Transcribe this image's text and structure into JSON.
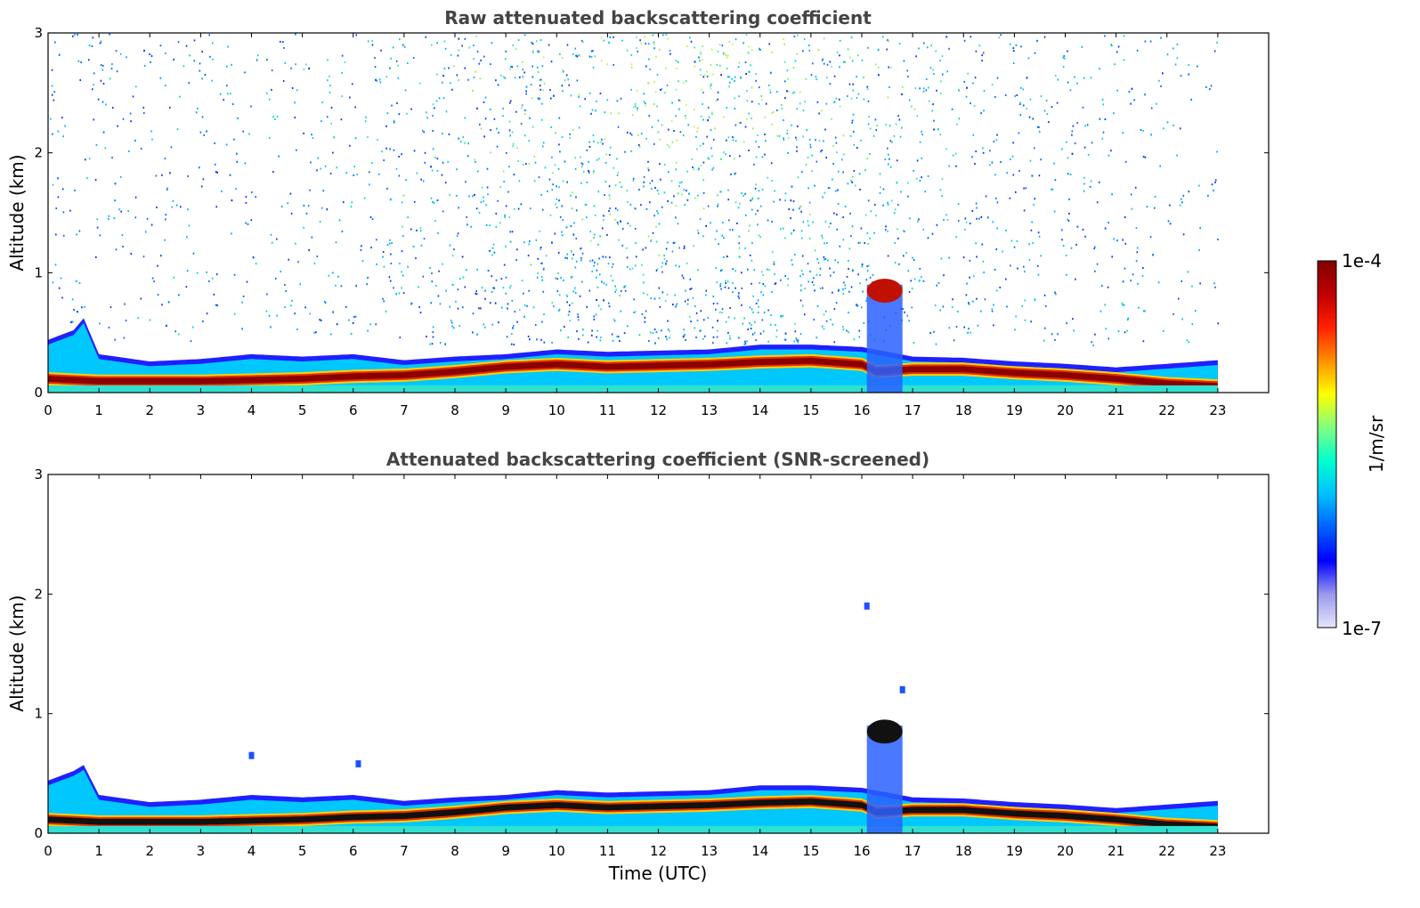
{
  "chart_data": [
    {
      "type": "heatmap",
      "title": "Raw attenuated backscattering coefficient",
      "xlabel": "",
      "ylabel": "Altitude (km)",
      "xlim": [
        0,
        24
      ],
      "ylim": [
        0,
        3
      ],
      "xticks": [
        "0",
        "1",
        "2",
        "3",
        "4",
        "5",
        "6",
        "7",
        "8",
        "9",
        "10",
        "11",
        "12",
        "13",
        "14",
        "15",
        "16",
        "17",
        "18",
        "19",
        "20",
        "21",
        "22",
        "23"
      ],
      "yticks": [
        "0",
        "1",
        "2",
        "3"
      ],
      "data_extent_hours": [
        0,
        23
      ],
      "layers": {
        "boundary_layer_top_km": [
          [
            0,
            0.42
          ],
          [
            0.5,
            0.5
          ],
          [
            0.7,
            0.6
          ],
          [
            1,
            0.3
          ],
          [
            2,
            0.24
          ],
          [
            3,
            0.26
          ],
          [
            4,
            0.3
          ],
          [
            5,
            0.28
          ],
          [
            6,
            0.3
          ],
          [
            7,
            0.25
          ],
          [
            8,
            0.28
          ],
          [
            9,
            0.3
          ],
          [
            10,
            0.34
          ],
          [
            11,
            0.32
          ],
          [
            12,
            0.33
          ],
          [
            13,
            0.34
          ],
          [
            14,
            0.38
          ],
          [
            15,
            0.38
          ],
          [
            16,
            0.36
          ],
          [
            17,
            0.28
          ],
          [
            18,
            0.27
          ],
          [
            19,
            0.24
          ],
          [
            20,
            0.22
          ],
          [
            21,
            0.19
          ],
          [
            22,
            0.22
          ],
          [
            23,
            0.25
          ]
        ],
        "dense_layer_km": [
          [
            0,
            0.12
          ],
          [
            1,
            0.1
          ],
          [
            2,
            0.1
          ],
          [
            3,
            0.1
          ],
          [
            4,
            0.11
          ],
          [
            5,
            0.12
          ],
          [
            6,
            0.14
          ],
          [
            7,
            0.15
          ],
          [
            8,
            0.18
          ],
          [
            9,
            0.22
          ],
          [
            10,
            0.24
          ],
          [
            11,
            0.22
          ],
          [
            12,
            0.23
          ],
          [
            13,
            0.24
          ],
          [
            14,
            0.26
          ],
          [
            15,
            0.27
          ],
          [
            16,
            0.24
          ],
          [
            16.3,
            0.18
          ],
          [
            17,
            0.2
          ],
          [
            18,
            0.2
          ],
          [
            19,
            0.17
          ],
          [
            20,
            0.15
          ],
          [
            21,
            0.12
          ],
          [
            22,
            0.08
          ],
          [
            23,
            0.06
          ]
        ],
        "cloud_event": {
          "time_h": [
            16.1,
            16.8
          ],
          "altitude_km": [
            0.8,
            0.9
          ]
        },
        "noise_region": {
          "time_h": [
            0,
            23
          ],
          "altitude_km": [
            0.4,
            3.0
          ]
        }
      }
    },
    {
      "type": "heatmap",
      "title": "Attenuated backscattering coefficient (SNR-screened)",
      "xlabel": "Time (UTC)",
      "ylabel": "Altitude (km)",
      "xlim": [
        0,
        24
      ],
      "ylim": [
        0,
        3
      ],
      "xticks": [
        "0",
        "1",
        "2",
        "3",
        "4",
        "5",
        "6",
        "7",
        "8",
        "9",
        "10",
        "11",
        "12",
        "13",
        "14",
        "15",
        "16",
        "17",
        "18",
        "19",
        "20",
        "21",
        "22",
        "23"
      ],
      "yticks": [
        "0",
        "1",
        "2",
        "3"
      ],
      "data_extent_hours": [
        0,
        23
      ],
      "layers": {
        "boundary_layer_top_km": [
          [
            0,
            0.42
          ],
          [
            0.5,
            0.5
          ],
          [
            0.7,
            0.55
          ],
          [
            1,
            0.3
          ],
          [
            2,
            0.24
          ],
          [
            3,
            0.26
          ],
          [
            4,
            0.3
          ],
          [
            5,
            0.28
          ],
          [
            6,
            0.3
          ],
          [
            7,
            0.25
          ],
          [
            8,
            0.28
          ],
          [
            9,
            0.3
          ],
          [
            10,
            0.34
          ],
          [
            11,
            0.32
          ],
          [
            12,
            0.33
          ],
          [
            13,
            0.34
          ],
          [
            14,
            0.38
          ],
          [
            15,
            0.38
          ],
          [
            16,
            0.36
          ],
          [
            17,
            0.28
          ],
          [
            18,
            0.27
          ],
          [
            19,
            0.24
          ],
          [
            20,
            0.22
          ],
          [
            21,
            0.19
          ],
          [
            22,
            0.22
          ],
          [
            23,
            0.25
          ]
        ],
        "dense_layer_km": [
          [
            0,
            0.12
          ],
          [
            1,
            0.1
          ],
          [
            2,
            0.1
          ],
          [
            3,
            0.1
          ],
          [
            4,
            0.11
          ],
          [
            5,
            0.12
          ],
          [
            6,
            0.14
          ],
          [
            7,
            0.15
          ],
          [
            8,
            0.18
          ],
          [
            9,
            0.22
          ],
          [
            10,
            0.24
          ],
          [
            11,
            0.22
          ],
          [
            12,
            0.23
          ],
          [
            13,
            0.24
          ],
          [
            14,
            0.26
          ],
          [
            15,
            0.27
          ],
          [
            16,
            0.24
          ],
          [
            16.3,
            0.18
          ],
          [
            17,
            0.2
          ],
          [
            18,
            0.2
          ],
          [
            19,
            0.17
          ],
          [
            20,
            0.15
          ],
          [
            21,
            0.12
          ],
          [
            22,
            0.08
          ],
          [
            23,
            0.06
          ]
        ],
        "cloud_event": {
          "time_h": [
            16.1,
            16.8
          ],
          "altitude_km": [
            0.8,
            0.9
          ]
        },
        "isolated_features": [
          {
            "time_h": 4.0,
            "altitude_km": 0.65
          },
          {
            "time_h": 6.1,
            "altitude_km": 0.58
          },
          {
            "time_h": 16.1,
            "altitude_km": 1.9
          },
          {
            "time_h": 16.8,
            "altitude_km": 1.2
          }
        ]
      }
    }
  ],
  "colorbar": {
    "label": "1/m/sr",
    "min_label": "1e-7",
    "max_label": "1e-4",
    "colors": [
      "#e6e6fa",
      "#9999ee",
      "#0000ff",
      "#0060ff",
      "#00c0ff",
      "#00ffd0",
      "#80ff80",
      "#ffff00",
      "#ff9000",
      "#ff2000",
      "#c00000",
      "#800000"
    ]
  }
}
